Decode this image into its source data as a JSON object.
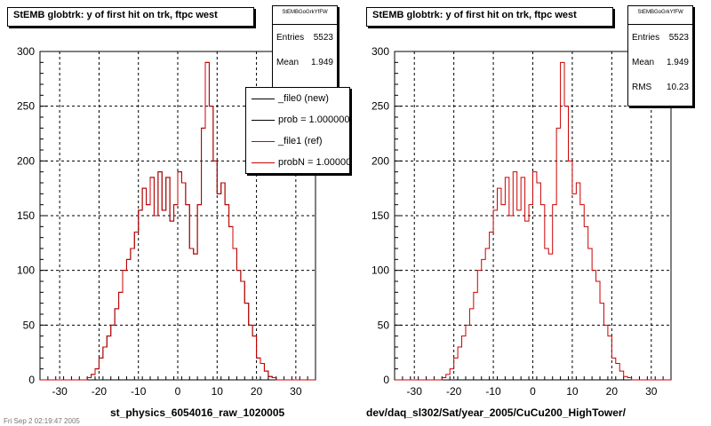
{
  "colors": {
    "hist_new": "#000000",
    "hist_ref": "#cc0000",
    "grid": "#000000",
    "background": "#ffffff"
  },
  "left_panel": {
    "title": "StEMB globtrk: y of first hit on trk, ftpc west",
    "xlabel": "st_physics_6054016_raw_1020005",
    "stats": {
      "header": "StEMBGoGrkYfFW",
      "rows": [
        {
          "label": "Entries",
          "value": "5523"
        },
        {
          "label": "Mean",
          "value": "1.949"
        }
      ]
    },
    "legend": [
      {
        "label": "_file0 (new)",
        "color": "#000000"
      },
      {
        "label": "prob = 1.000000",
        "color": "#000000"
      },
      {
        "label": "_file1 (ref)",
        "color": "#cc0000"
      },
      {
        "label": "probN = 1.000000",
        "color": "#cc0000"
      }
    ]
  },
  "right_panel": {
    "title": "StEMB globtrk: y of first hit on trk, ftpc west",
    "xlabel": "dev/daq_sl302/Sat/year_2005/CuCu200_HighTower/",
    "stats": {
      "header": "StEMBGoGrkYfFW",
      "rows": [
        {
          "label": "Entries",
          "value": "5523"
        },
        {
          "label": "Mean",
          "value": "1.949"
        },
        {
          "label": "RMS",
          "value": "10.23"
        }
      ]
    }
  },
  "footer_text": "Fri Sep 2 02:19:47 2005",
  "chart_data": [
    {
      "type": "bar",
      "style": "step-histogram",
      "title": "StEMB globtrk: y of first hit on trk, ftpc west",
      "xlabel": "st_physics_6054016_raw_1020005",
      "ylabel": "",
      "xlim": [
        -35,
        35
      ],
      "ylim": [
        0,
        300
      ],
      "xticks": [
        -30,
        -20,
        -10,
        0,
        10,
        20,
        30
      ],
      "yticks": [
        0,
        50,
        100,
        150,
        200,
        250,
        300
      ],
      "grid": true,
      "legend_position": "top-right",
      "bin_edges_start": -35,
      "bin_width": 1,
      "series": [
        {
          "name": "_file0 (new)",
          "color": "#000000",
          "values": [
            0,
            0,
            0,
            0,
            0,
            0,
            0,
            0,
            0,
            0,
            0,
            0,
            2,
            5,
            10,
            20,
            30,
            40,
            50,
            65,
            80,
            100,
            110,
            120,
            135,
            155,
            175,
            160,
            185,
            150,
            190,
            155,
            185,
            145,
            160,
            190,
            180,
            160,
            120,
            115,
            160,
            230,
            290,
            250,
            200,
            170,
            180,
            160,
            140,
            120,
            100,
            90,
            70,
            50,
            40,
            20,
            15,
            8,
            3,
            2,
            0,
            0,
            0,
            0,
            0,
            0,
            0,
            0,
            0,
            0
          ]
        },
        {
          "name": "_file1 (ref)",
          "color": "#cc0000",
          "values": [
            0,
            0,
            0,
            0,
            0,
            0,
            0,
            0,
            0,
            0,
            0,
            0,
            2,
            5,
            10,
            20,
            30,
            40,
            50,
            65,
            80,
            100,
            110,
            120,
            135,
            155,
            175,
            160,
            185,
            150,
            190,
            155,
            185,
            145,
            160,
            190,
            180,
            160,
            120,
            115,
            160,
            230,
            290,
            250,
            200,
            170,
            180,
            160,
            140,
            120,
            100,
            90,
            70,
            50,
            40,
            20,
            15,
            8,
            3,
            2,
            0,
            0,
            0,
            0,
            0,
            0,
            0,
            0,
            0,
            0
          ]
        }
      ]
    },
    {
      "type": "bar",
      "style": "step-histogram",
      "title": "StEMB globtrk: y of first hit on trk, ftpc west",
      "xlabel": "dev/daq_sl302/Sat/year_2005/CuCu200_HighTower/",
      "ylabel": "",
      "xlim": [
        -35,
        35
      ],
      "ylim": [
        0,
        300
      ],
      "xticks": [
        -30,
        -20,
        -10,
        0,
        10,
        20,
        30
      ],
      "yticks": [
        0,
        50,
        100,
        150,
        200,
        250,
        300
      ],
      "grid": true,
      "bin_edges_start": -35,
      "bin_width": 1,
      "series": [
        {
          "name": "_file1 (ref)",
          "color": "#cc0000",
          "values": [
            0,
            0,
            0,
            0,
            0,
            0,
            0,
            0,
            0,
            0,
            0,
            0,
            2,
            5,
            10,
            20,
            30,
            40,
            50,
            65,
            80,
            100,
            110,
            120,
            135,
            155,
            175,
            160,
            185,
            150,
            190,
            155,
            185,
            145,
            160,
            190,
            180,
            160,
            120,
            115,
            160,
            230,
            290,
            250,
            200,
            170,
            180,
            160,
            140,
            120,
            100,
            90,
            70,
            50,
            40,
            20,
            15,
            8,
            3,
            2,
            0,
            0,
            0,
            0,
            0,
            0,
            0,
            0,
            0,
            0
          ]
        }
      ]
    }
  ]
}
